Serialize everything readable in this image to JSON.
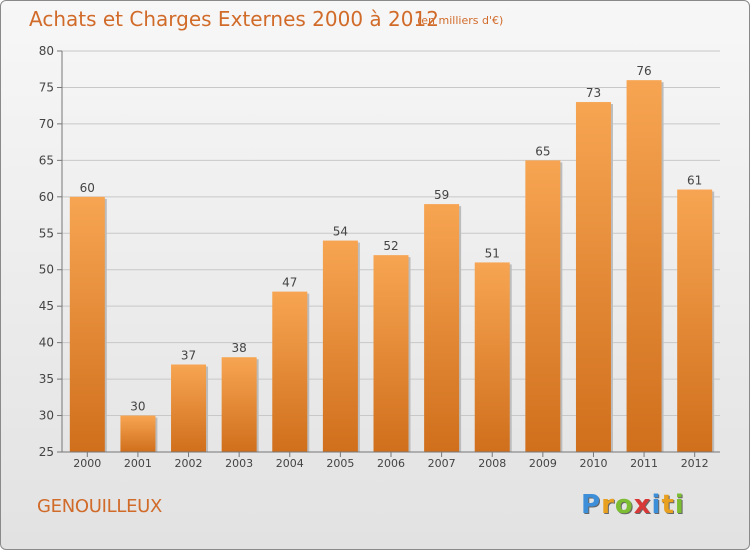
{
  "title": "Achats et Charges Externes 2000 à 2012",
  "subtitle": "(en milliers d'€)",
  "commune": "GENOUILLEUX",
  "logo": {
    "letters": [
      "P",
      "r",
      "o",
      "x",
      "i",
      "t",
      "i"
    ],
    "colors": [
      "#3c8fd8",
      "#e8a020",
      "#7cbd34",
      "#d83838",
      "#3c8fd8",
      "#e8a020",
      "#7cbd34"
    ]
  },
  "colors": {
    "bar_light": "#f7a552",
    "bar_dark": "#d06f1c",
    "text": "#d16b2a"
  },
  "chart_data": {
    "type": "bar",
    "categories": [
      "2000",
      "2001",
      "2002",
      "2003",
      "2004",
      "2005",
      "2006",
      "2007",
      "2008",
      "2009",
      "2010",
      "2011",
      "2012"
    ],
    "values": [
      60,
      30,
      37,
      38,
      47,
      54,
      52,
      59,
      51,
      65,
      73,
      76,
      61
    ],
    "data_labels": [
      "60",
      "30",
      "37",
      "38",
      "47",
      "54",
      "52",
      "59",
      "51",
      "65",
      "73",
      "76",
      "61"
    ],
    "title": "Achats et Charges Externes 2000 à 2012",
    "ylim": [
      25,
      80
    ],
    "yticks": [
      25,
      30,
      35,
      40,
      45,
      50,
      55,
      60,
      65,
      70,
      75,
      80
    ],
    "ytick_labels": [
      "25",
      "30",
      "35",
      "40",
      "45",
      "50",
      "55",
      "60",
      "65",
      "70",
      "75",
      "80"
    ],
    "grid": true
  }
}
